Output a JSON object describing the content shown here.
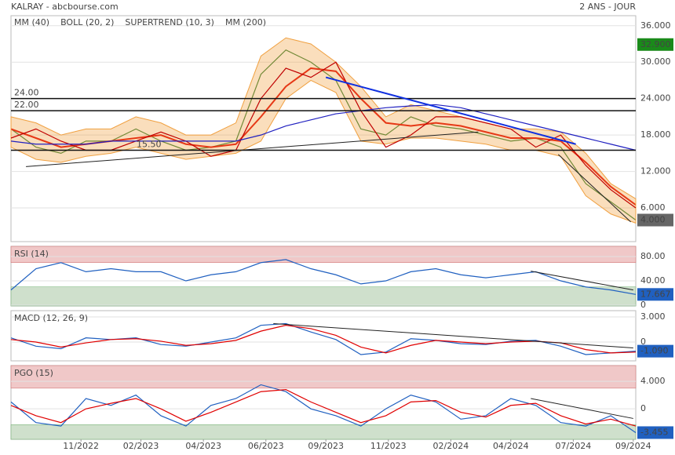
{
  "chart_data": [
    {
      "type": "line",
      "title": "KALRAY - abcbourse.com",
      "subtitle": "2 ANS - JOUR",
      "x": [
        0,
        1,
        2,
        3,
        4,
        5,
        6,
        7,
        8,
        9,
        10,
        11,
        12,
        13,
        14,
        15,
        16,
        17,
        18,
        19,
        20,
        21,
        22,
        23,
        24,
        25
      ],
      "xlim": [
        0,
        25
      ],
      "ylim": [
        0.45,
        37.65
      ],
      "yticks": [
        {
          "value": 36,
          "label": "36.000"
        },
        {
          "value": 30,
          "label": "30.000"
        },
        {
          "value": 24,
          "label": "24.000"
        },
        {
          "value": 18,
          "label": "18.000"
        },
        {
          "value": 12,
          "label": "12.000"
        },
        {
          "value": 6,
          "label": "6.000"
        }
      ],
      "series": [
        {
          "color": "#2e7d32",
          "values": [
            19,
            16,
            15,
            17,
            17,
            19,
            17,
            15.5,
            16,
            17,
            28,
            32,
            30,
            27,
            19,
            18,
            21,
            19.5,
            19,
            18,
            17,
            17.5,
            16,
            10,
            7,
            4
          ]
        },
        {
          "name": "MM (40)",
          "color": "#e00000",
          "values": [
            19,
            17.5,
            16,
            16.5,
            17,
            17.5,
            18,
            16.5,
            16,
            16.5,
            21,
            26,
            29,
            28.5,
            24,
            20,
            19.5,
            20,
            19.5,
            18.5,
            17.5,
            17.5,
            17,
            13.5,
            9.5,
            6.5
          ]
        },
        {
          "name": "BOLL (20, 2)",
          "color": "#f0a040",
          "upper": [
            21,
            20,
            18,
            19,
            19,
            21,
            20,
            18,
            18,
            20,
            31,
            34,
            33,
            30,
            26,
            21,
            23,
            22,
            21,
            20,
            19,
            19,
            18.5,
            15,
            10,
            7.5
          ],
          "lower": [
            16,
            14,
            13.5,
            14.5,
            15,
            16,
            15,
            14,
            14.5,
            15,
            17,
            24,
            27,
            25,
            17,
            16.5,
            17.5,
            17.5,
            17,
            16.5,
            15.5,
            15.5,
            14.5,
            8,
            5,
            3.5
          ]
        },
        {
          "name": "SUPERTREND (10, 3)",
          "color": "#c00000",
          "values": [
            17.5,
            19,
            17,
            15.5,
            15.5,
            17,
            18.5,
            17,
            14.5,
            15.5,
            24,
            29,
            27.5,
            30,
            22,
            16,
            18,
            21,
            21,
            20,
            19,
            16,
            18,
            13,
            9,
            6
          ]
        },
        {
          "name": "MM (200)",
          "color": "#2020c0",
          "values": [
            17,
            16.5,
            16.5,
            16.5,
            17,
            17,
            17,
            17,
            17,
            17,
            18,
            19.5,
            20.5,
            21.5,
            22,
            22.5,
            22.8,
            23,
            22.5,
            21.5,
            20.5,
            19.5,
            18.5,
            17.5,
            16.5,
            15.5
          ]
        }
      ],
      "hlines": [
        {
          "value": 24,
          "label": "24.00"
        },
        {
          "value": 22,
          "label": "22.00"
        },
        {
          "value": 15.5,
          "label": "15.50"
        }
      ],
      "trendlines": [
        {
          "color": "#1030e0",
          "x": [
            12.6,
            22.6
          ],
          "y": [
            27.5,
            16.5
          ]
        },
        {
          "color": "#222222",
          "x": [
            0.6,
            18.7
          ],
          "y": [
            12.8,
            18.5
          ]
        },
        {
          "color": "#222222",
          "x": [
            21.9,
            24.8
          ],
          "y": [
            14.8,
            3.7
          ]
        }
      ],
      "price_labels": [
        {
          "value": 32.9,
          "label": "32.900",
          "color": "#1a8a1a"
        },
        {
          "value": 4,
          "label": "4.000",
          "color": "#666666"
        }
      ]
    },
    {
      "type": "line",
      "title": "RSI (14)",
      "x": [
        0,
        1,
        2,
        3,
        4,
        5,
        6,
        7,
        8,
        9,
        10,
        11,
        12,
        13,
        14,
        15,
        16,
        17,
        18,
        19,
        20,
        21,
        22,
        23,
        24,
        25
      ],
      "xlim": [
        0,
        25
      ],
      "ylim": [
        -1.3,
        96.8
      ],
      "yticks": [
        {
          "value": 80,
          "label": "80.00"
        },
        {
          "value": 40,
          "label": "40.00"
        },
        0
      ],
      "zones": [
        {
          "above": 70,
          "color": "#f0c8c8"
        },
        {
          "below": 30,
          "color": "#cfe0cc"
        }
      ],
      "series": [
        {
          "color": "#2060c0",
          "values": [
            25,
            60,
            70,
            55,
            60,
            55,
            55,
            40,
            50,
            55,
            70,
            75,
            60,
            50,
            35,
            40,
            55,
            60,
            50,
            45,
            50,
            55,
            40,
            30,
            25,
            17.667
          ]
        }
      ],
      "trendlines": [
        {
          "color": "#222222",
          "x": [
            20.8,
            24.9
          ],
          "y": [
            56,
            25
          ]
        }
      ],
      "price_labels": [
        {
          "value": 17.667,
          "label": "17.667",
          "color": "#2060c0"
        }
      ]
    },
    {
      "type": "line",
      "title": "MACD (12, 26, 9)",
      "x": [
        0,
        1,
        2,
        3,
        4,
        5,
        6,
        7,
        8,
        9,
        10,
        11,
        12,
        13,
        14,
        15,
        16,
        17,
        18,
        19,
        20,
        21,
        22,
        23,
        24,
        25
      ],
      "xlim": [
        0,
        25
      ],
      "ylim": [
        -2.25,
        3.75
      ],
      "yticks": [
        {
          "value": 3,
          "label": "3.000"
        },
        0
      ],
      "series": [
        {
          "color": "#2060c0",
          "values": [
            0.5,
            -0.5,
            -0.8,
            0.5,
            0.3,
            0.5,
            -0.3,
            -0.5,
            0,
            0.5,
            2,
            2.2,
            1.2,
            0.3,
            -1.5,
            -1.2,
            0.4,
            0.2,
            -0.2,
            -0.3,
            0.1,
            0.2,
            -0.5,
            -1.5,
            -1.3,
            -1.09
          ]
        },
        {
          "color": "#e00000",
          "values": [
            0.3,
            0,
            -0.6,
            -0.1,
            0.3,
            0.4,
            0.1,
            -0.4,
            -0.2,
            0.2,
            1.3,
            2,
            1.6,
            0.8,
            -0.6,
            -1.3,
            -0.4,
            0.2,
            0,
            -0.2,
            0,
            0.1,
            -0.1,
            -0.9,
            -1.3,
            -1.2
          ]
        }
      ],
      "trendlines": [
        {
          "color": "#222222",
          "x": [
            10.5,
            24.9
          ],
          "y": [
            2.2,
            -0.7
          ]
        }
      ],
      "price_labels": [
        {
          "value": -1.09,
          "label": "-1.090",
          "color": "#2060c0"
        }
      ]
    },
    {
      "type": "line",
      "title": "PGO (15)",
      "x": [
        0,
        1,
        2,
        3,
        4,
        5,
        6,
        7,
        8,
        9,
        10,
        11,
        12,
        13,
        14,
        15,
        16,
        17,
        18,
        19,
        20,
        21,
        22,
        23,
        24,
        25
      ],
      "xlim": [
        0,
        25
      ],
      "ylim": [
        -4.43,
        6.29
      ],
      "yticks": [
        {
          "value": 4,
          "label": "4.000"
        },
        0
      ],
      "zones": [
        {
          "above": 3,
          "color": "#f0c8c8"
        },
        {
          "below": -2.3,
          "color": "#cfe0cc"
        }
      ],
      "series": [
        {
          "color": "#2060c0",
          "values": [
            1,
            -2,
            -2.5,
            1.5,
            0.5,
            2,
            -1,
            -2.5,
            0.5,
            1.5,
            3.5,
            2.5,
            0,
            -1,
            -2.5,
            0,
            2,
            1,
            -1.5,
            -1,
            1.5,
            0.5,
            -2,
            -2.5,
            -1,
            -3.455
          ]
        },
        {
          "color": "#e00000",
          "values": [
            0.5,
            -1,
            -2,
            0,
            0.8,
            1.5,
            0,
            -1.8,
            -0.5,
            1,
            2.5,
            2.8,
            1,
            -0.5,
            -2,
            -1,
            1,
            1.2,
            -0.5,
            -1.2,
            0.5,
            0.8,
            -1,
            -2.2,
            -1.5,
            -2.5
          ]
        }
      ],
      "trendlines": [
        {
          "color": "#222222",
          "x": [
            20.8,
            24.9
          ],
          "y": [
            1.5,
            -1.4
          ]
        }
      ],
      "price_labels": [
        {
          "value": -3.455,
          "label": "-3.455",
          "color": "#2060c0"
        }
      ],
      "xticks": [
        {
          "value": 2.8,
          "label": "11/2022"
        },
        {
          "value": 5.2,
          "label": "02/2023"
        },
        {
          "value": 7.7,
          "label": "04/2023"
        },
        {
          "value": 10.2,
          "label": "06/2023"
        },
        {
          "value": 12.6,
          "label": "09/2023"
        },
        {
          "value": 15.1,
          "label": "11/2023"
        },
        {
          "value": 17.6,
          "label": "02/2024"
        },
        {
          "value": 20,
          "label": "04/2024"
        },
        {
          "value": 22.5,
          "label": "07/2024"
        },
        {
          "value": 24.9,
          "label": "09/2024"
        }
      ]
    }
  ]
}
